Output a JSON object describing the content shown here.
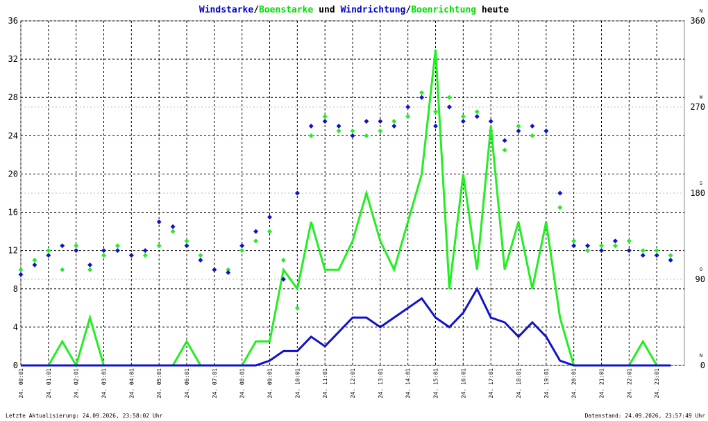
{
  "chart_data": {
    "type": "line",
    "title_parts": [
      {
        "text": "Windstarke",
        "color": "#0000cc"
      },
      {
        "text": "/",
        "color": "#000000"
      },
      {
        "text": "Boenstarke",
        "color": "#00dd00"
      },
      {
        "text": " und ",
        "color": "#000000"
      },
      {
        "text": "Windrichtung",
        "color": "#0000cc"
      },
      {
        "text": "/",
        "color": "#000000"
      },
      {
        "text": "Boenrichtung",
        "color": "#00dd00"
      },
      {
        "text": " heute",
        "color": "#000000"
      }
    ],
    "footer_left": "Letzte Aktualisierung: 24.09.2026, 23:58:02 Uhr",
    "footer_right": "Datenstand: 24.09.2026, 23:57:49 Uhr",
    "xlim": [
      0,
      24
    ],
    "xticks": [
      {
        "value": 0,
        "label": "24. 00:01"
      },
      {
        "value": 1,
        "label": "24. 01:01"
      },
      {
        "value": 2,
        "label": "24. 02:01"
      },
      {
        "value": 3,
        "label": "24. 03:01"
      },
      {
        "value": 4,
        "label": "24. 04:01"
      },
      {
        "value": 5,
        "label": "24. 05:01"
      },
      {
        "value": 6,
        "label": "24. 06:01"
      },
      {
        "value": 7,
        "label": "24. 07:01"
      },
      {
        "value": 8,
        "label": "24. 08:01"
      },
      {
        "value": 9,
        "label": "24. 09:01"
      },
      {
        "value": 10,
        "label": "24. 10:01"
      },
      {
        "value": 11,
        "label": "24. 11:01"
      },
      {
        "value": 12,
        "label": "24. 12:01"
      },
      {
        "value": 13,
        "label": "24. 13:01"
      },
      {
        "value": 14,
        "label": "24. 14:01"
      },
      {
        "value": 15,
        "label": "24. 15:01"
      },
      {
        "value": 16,
        "label": "24. 16:01"
      },
      {
        "value": 17,
        "label": "24. 17:01"
      },
      {
        "value": 18,
        "label": "24. 18:01"
      },
      {
        "value": 19,
        "label": "24. 19:01"
      },
      {
        "value": 20,
        "label": "24. 20:01"
      },
      {
        "value": 21,
        "label": "24. 21:01"
      },
      {
        "value": 22,
        "label": "24. 22:01"
      },
      {
        "value": 23,
        "label": "24. 23:01"
      }
    ],
    "ylim": [
      0,
      36
    ],
    "yticks": [
      0,
      4,
      8,
      12,
      16,
      20,
      24,
      28,
      32,
      36
    ],
    "y2lim": [
      0,
      360
    ],
    "y2ticks": [
      0,
      90,
      180,
      270,
      360
    ],
    "y2_compass": [
      "N",
      "O",
      "S",
      "W",
      "N"
    ],
    "grid": true,
    "x": [
      0,
      0.5,
      1,
      1.5,
      2,
      2.5,
      3,
      3.5,
      4,
      4.5,
      5,
      5.5,
      6,
      6.5,
      7,
      7.5,
      8,
      8.5,
      9,
      9.5,
      10,
      10.5,
      11,
      11.5,
      12,
      12.5,
      13,
      13.5,
      14,
      14.5,
      15,
      15.5,
      16,
      16.5,
      17,
      17.5,
      18,
      18.5,
      19,
      19.5,
      20,
      20.5,
      21,
      21.5,
      22,
      22.5,
      23,
      23.5
    ],
    "series": [
      {
        "name": "Boenstarke",
        "kind": "line",
        "color": "#22ee22",
        "values": [
          0,
          0,
          0,
          2.5,
          0,
          5,
          0,
          0,
          0,
          0,
          0,
          0,
          2.5,
          0,
          0,
          0,
          0,
          2.5,
          2.5,
          10,
          8,
          15,
          10,
          10,
          13,
          18,
          13,
          10,
          15,
          20,
          33,
          8,
          20,
          10,
          25,
          10,
          15,
          8,
          15,
          5,
          0,
          0,
          0,
          0,
          0,
          2.5,
          0,
          0
        ]
      },
      {
        "name": "Windstarke",
        "kind": "line",
        "color": "#1111cc",
        "values": [
          0,
          0,
          0,
          0,
          0,
          0,
          0,
          0,
          0,
          0,
          0,
          0,
          0,
          0,
          0,
          0,
          0,
          0,
          0.5,
          1.5,
          1.5,
          3,
          2,
          3.5,
          5,
          5,
          4,
          5,
          6,
          7,
          5,
          4,
          5.5,
          8,
          5,
          4.5,
          3,
          4.5,
          3,
          0.5,
          0,
          0,
          0,
          0,
          0,
          0,
          0,
          0
        ]
      },
      {
        "name": "Boenrichtung",
        "kind": "scatter",
        "axis": "y2",
        "color": "#22ee22",
        "values": [
          100,
          110,
          120,
          100,
          125,
          100,
          115,
          125,
          115,
          115,
          125,
          140,
          130,
          115,
          100,
          100,
          120,
          130,
          140,
          110,
          60,
          240,
          260,
          245,
          245,
          240,
          245,
          255,
          260,
          285,
          265,
          280,
          260,
          265,
          245,
          225,
          250,
          240,
          245,
          165,
          130,
          120,
          125,
          125,
          130,
          120,
          120,
          115
        ]
      },
      {
        "name": "Windrichtung",
        "kind": "scatter",
        "axis": "y2",
        "color": "#1111cc",
        "values": [
          95,
          105,
          115,
          125,
          120,
          105,
          120,
          120,
          115,
          120,
          150,
          145,
          125,
          110,
          100,
          97,
          125,
          140,
          155,
          90,
          180,
          250,
          255,
          250,
          240,
          255,
          255,
          250,
          270,
          280,
          250,
          270,
          255,
          260,
          255,
          235,
          245,
          250,
          245,
          180,
          125,
          125,
          120,
          130,
          120,
          115,
          115,
          110
        ]
      }
    ]
  }
}
